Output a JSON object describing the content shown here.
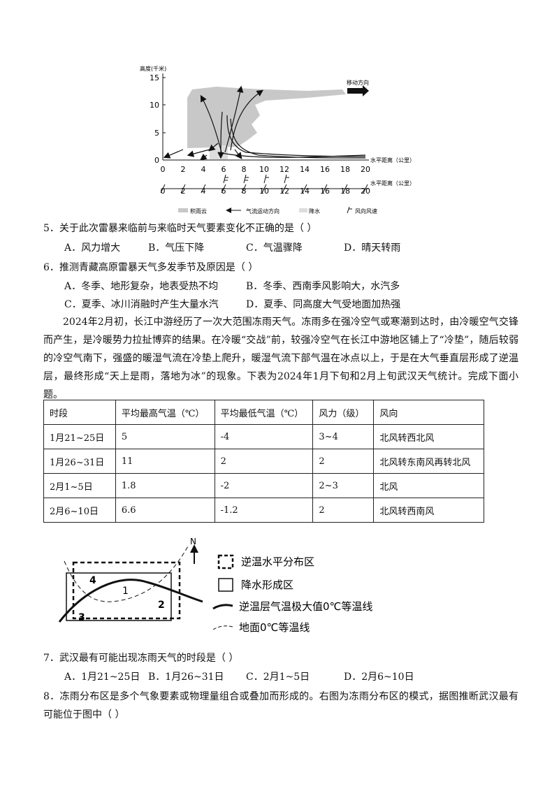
{
  "figure1": {
    "y_axis_label": "高度(千米)",
    "y_ticks": [
      15,
      10,
      5,
      0
    ],
    "x_ticks": [
      0,
      2,
      4,
      6,
      8,
      10,
      12,
      14,
      16,
      18,
      20
    ],
    "x_ticks_2": [
      0,
      2,
      4,
      6,
      8,
      10,
      12,
      14,
      16,
      18,
      20
    ],
    "x_axis_label": "水平距离（公里）",
    "x_axis_label_2": "水平距离（公里）",
    "move_direction": "移动方向",
    "legend": [
      "积雨云",
      "气流运动方向",
      "降水",
      "风向风速"
    ]
  },
  "questions_a": [
    {
      "stem": "5．关于此次雷暴来临前与来临时天气要素变化不正确的是（   ）",
      "options": [
        "A．风力增大",
        "B．气压下降",
        "C．气温骤降",
        "D．晴天转雨"
      ]
    },
    {
      "stem": "6．推测青藏高原雷暴天气多发季节及原因是（   ）",
      "options": [
        "A．冬季、地形复杂，地表受热不均",
        "B．冬季、西南季风影响大，水汽多",
        "C．夏季、冰川消融时产生大量水汽",
        "D．夏季、同高度大气受地面加热强"
      ]
    }
  ],
  "passage": "2024年2月初，长江中游经历了一次大范围冻雨天气。冻雨多在强冷空气或寒潮到达时，由冷暖空气交锋而产生，是冷暖势力拉扯博弈的结果。在冷暖“交战”前，较强冷空气在长江中游地区铺上了“冷垫”，随后较弱的冷空气南下，强盛的暖湿气流在冷垫上爬升，暖湿气流下部气温在冰点以上，于是在大气垂直层形成了逆温层，最终形成“天上是雨，落地为冰”的现象。下表为2024年1月下旬和2月上旬武汉天气统计。完成下面小题。",
  "table": {
    "header": [
      "时段",
      "平均最高气温（℃）",
      "平均最低气温（℃）",
      "风力（级）",
      "风向"
    ],
    "rows": [
      [
        "1月21~25日",
        "5",
        "-4",
        "3~4",
        "北风转西北风"
      ],
      [
        "1月26~31日",
        "11",
        "2",
        "2",
        "北风转东南风再转北风"
      ],
      [
        "2月1~5日",
        "1.8",
        "-2",
        "2~3",
        "北风"
      ],
      [
        "2月6~10日",
        "6.6",
        "-1.2",
        "2",
        "北风转西南风"
      ]
    ]
  },
  "figure2": {
    "north": "N",
    "labels": [
      "4",
      "1",
      "2",
      "3"
    ],
    "legend": [
      "逆温水平分布区",
      "降水形成区",
      "逆温层气温极大值0℃等温线",
      "地面0℃等温线"
    ]
  },
  "questions_b": [
    {
      "stem": "7．武汉最有可能出现冻雨天气的时段是（   ）",
      "options": [
        "A．1月21~25日",
        "B．1月26~31日",
        "C．2月1~5日",
        "D．2月6~10日"
      ]
    },
    {
      "stem": "8．冻雨分布区是多个气象要素或物理量组合或叠加而形成的。右图为冻雨分布区的模式，据图推断武汉最有可能位于图中（   ）",
      "options": []
    }
  ]
}
